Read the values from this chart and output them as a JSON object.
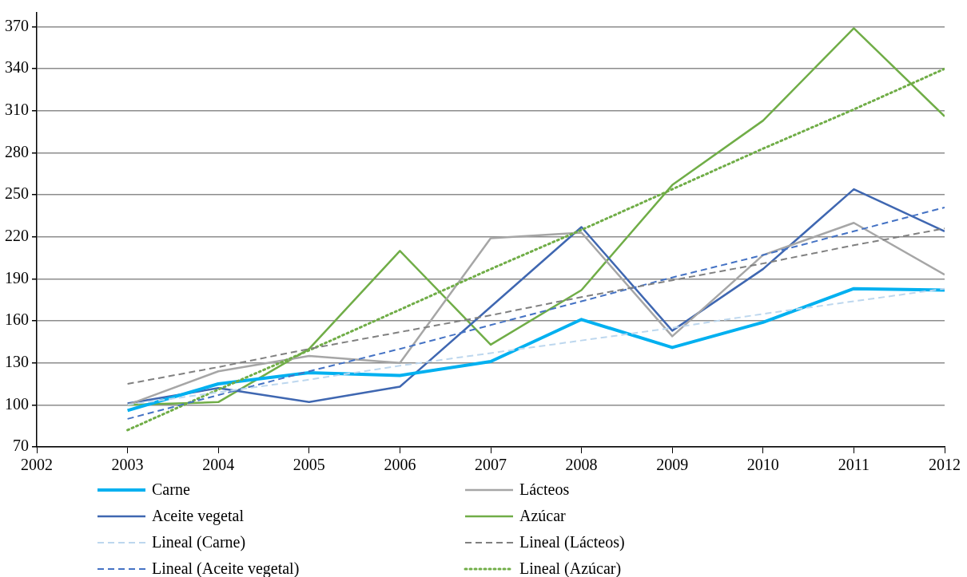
{
  "chart_data": {
    "type": "line",
    "x": [
      2003,
      2004,
      2005,
      2006,
      2007,
      2008,
      2009,
      2010,
      2011,
      2012
    ],
    "series": [
      {
        "name": "Carne",
        "color": "#00b0f0",
        "values": [
          96,
          115,
          123,
          121,
          131,
          161,
          141,
          159,
          183,
          182
        ]
      },
      {
        "name": "Lácteos",
        "color": "#a6a6a6",
        "values": [
          100,
          124,
          135,
          130,
          219,
          223,
          149,
          207,
          230,
          193
        ]
      },
      {
        "name": "Aceite vegetal",
        "color": "#3f67b1",
        "values": [
          101,
          112,
          102,
          113,
          170,
          227,
          153,
          197,
          254,
          224
        ]
      },
      {
        "name": "Azúcar",
        "color": "#70ad47",
        "values": [
          100,
          102,
          140,
          210,
          143,
          182,
          257,
          303,
          369,
          306
        ]
      },
      {
        "name": "Lineal (Carne)",
        "color": "#bdd7ee",
        "values": [
          100,
          109,
          118,
          128,
          137,
          146,
          155,
          165,
          174,
          183
        ],
        "line_style": "dashed"
      },
      {
        "name": "Lineal (Lácteos)",
        "color": "#808080",
        "values": [
          115,
          127,
          140,
          152,
          164,
          177,
          189,
          201,
          214,
          226
        ],
        "line_style": "dashed"
      },
      {
        "name": "Lineal (Aceite vegetal)",
        "color": "#4472c4",
        "values": [
          90,
          107,
          124,
          140,
          157,
          174,
          191,
          207,
          224,
          241
        ],
        "line_style": "dashed"
      },
      {
        "name": "Lineal (Azúcar)",
        "color": "#70ad47",
        "values": [
          82,
          111,
          139,
          168,
          197,
          225,
          254,
          283,
          311,
          340
        ],
        "line_style": "dotted"
      }
    ],
    "xlim": [
      2002,
      2012
    ],
    "xticks": [
      2002,
      2003,
      2004,
      2005,
      2006,
      2007,
      2008,
      2009,
      2010,
      2011,
      2012
    ],
    "ylim": [
      70,
      380
    ],
    "yticks": [
      70,
      100,
      130,
      160,
      190,
      220,
      250,
      280,
      310,
      340,
      370
    ],
    "grid": "y",
    "legend": "bottom",
    "marker": "none",
    "line_style": "solid"
  }
}
